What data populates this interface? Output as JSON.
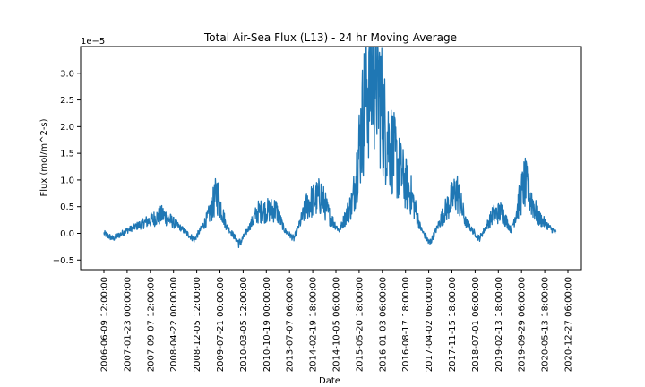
{
  "chart_data": {
    "type": "line",
    "title": "Total Air-Sea Flux (L13) - 24 hr Moving Average",
    "xlabel": "Date",
    "ylabel": "Flux (mol/m^2-s)",
    "y_offset_label": "1e−5",
    "ylim": [
      -0.68,
      3.5
    ],
    "y_scale_factor": "1e-5",
    "xlim": [
      "2006-02-22",
      "2021-05-09"
    ],
    "grid": false,
    "x_ticks": [
      "2006-06-09 12:00:00",
      "2007-01-23 00:00:00",
      "2007-09-07 12:00:00",
      "2008-04-22 00:00:00",
      "2008-12-05 12:00:00",
      "2009-07-21 00:00:00",
      "2010-03-05 12:00:00",
      "2010-10-19 00:00:00",
      "2013-07-07 06:00:00",
      "2014-02-19 18:00:00",
      "2014-10-05 06:00:00",
      "2015-05-20 18:00:00",
      "2016-01-03 06:00:00",
      "2016-08-17 18:00:00",
      "2017-04-02 06:00:00",
      "2017-11-15 18:00:00",
      "2018-07-01 06:00:00",
      "2019-02-13 18:00:00",
      "2019-09-29 06:00:00",
      "2020-05-13 18:00:00",
      "2020-12-27 06:00:00"
    ],
    "y_ticks": [
      "−0.5",
      "0.0",
      "0.5",
      "1.0",
      "1.5",
      "2.0",
      "2.5",
      "3.0"
    ],
    "y_tick_values": [
      -0.5,
      0.0,
      0.5,
      1.0,
      1.5,
      2.0,
      2.5,
      3.0
    ],
    "series": [
      {
        "color": "#1f77b4",
        "x": [
          0.0,
          0.02,
          0.05,
          0.09,
          0.13,
          0.17,
          0.2,
          0.23,
          0.25,
          0.27,
          0.3,
          0.34,
          0.38,
          0.4,
          0.42,
          0.45,
          0.48,
          0.5,
          0.52,
          0.55,
          0.58,
          0.6,
          0.62,
          0.65,
          0.68,
          0.7,
          0.72,
          0.75,
          0.78,
          0.8,
          0.83,
          0.86,
          0.88,
          0.9,
          0.93,
          0.96,
          1.0
        ],
        "y": [
          0.0,
          -0.1,
          0.05,
          0.2,
          0.35,
          0.1,
          -0.12,
          0.3,
          0.75,
          0.15,
          -0.2,
          0.4,
          0.45,
          0.05,
          -0.1,
          0.55,
          0.7,
          0.3,
          0.05,
          0.6,
          2.7,
          3.25,
          2.0,
          1.25,
          0.7,
          0.1,
          -0.2,
          0.35,
          0.8,
          0.2,
          -0.1,
          0.35,
          0.4,
          0.05,
          0.95,
          0.3,
          0.0
        ]
      }
    ]
  }
}
